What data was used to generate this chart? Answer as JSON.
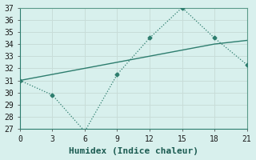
{
  "xlabel": "Humidex (Indice chaleur)",
  "x_values": [
    0,
    3,
    6,
    9,
    12,
    15,
    18,
    21
  ],
  "y_dotted": [
    31,
    29.8,
    26.8,
    31.5,
    34.5,
    37.0,
    34.5,
    32.3
  ],
  "y_solid": [
    31.0,
    31.5,
    32.0,
    32.5,
    33.0,
    33.5,
    34.0,
    34.3
  ],
  "xlim": [
    0,
    21
  ],
  "ylim": [
    27,
    37
  ],
  "xticks": [
    0,
    3,
    6,
    9,
    12,
    15,
    18,
    21
  ],
  "yticks": [
    27,
    28,
    29,
    30,
    31,
    32,
    33,
    34,
    35,
    36,
    37
  ],
  "line_color": "#2d7d6e",
  "bg_color": "#d8f0ed",
  "grid_color": "#c8ddd9",
  "tick_fontsize": 7,
  "label_fontsize": 8
}
